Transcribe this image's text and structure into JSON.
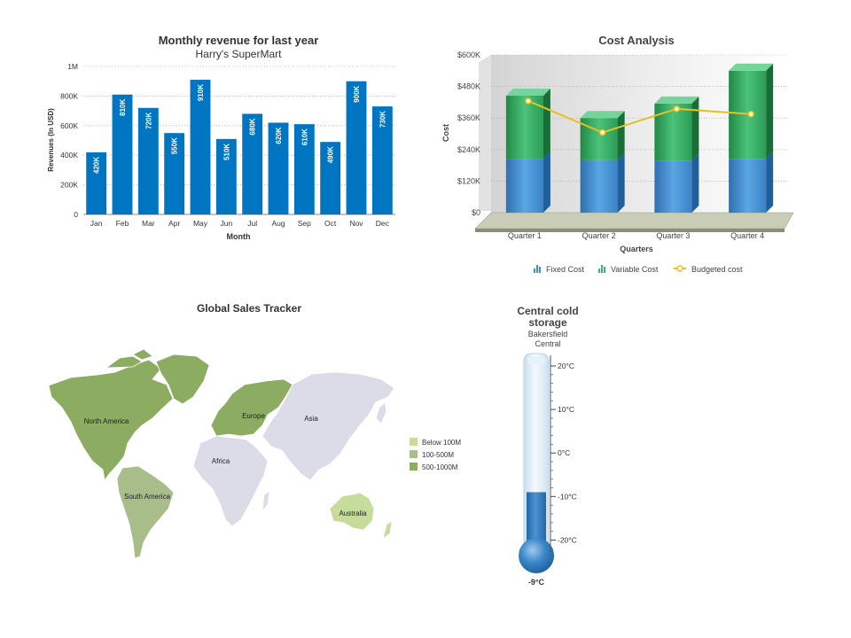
{
  "charts": {
    "revenue": {
      "title": "Monthly revenue for last year",
      "subtitle": "Harry's SuperMart",
      "xlabel": "Month",
      "ylabel": "Revenues (In USD)",
      "y_ticks": [
        "0",
        "200K",
        "400K",
        "600K",
        "800K",
        "1M"
      ],
      "bar_labels": [
        "420K",
        "810K",
        "720K",
        "550K",
        "910K",
        "510K",
        "680K",
        "620K",
        "610K",
        "490K",
        "900K",
        "730K"
      ],
      "colors": {
        "bar": "#0075c2",
        "grid": "#cccccc"
      }
    },
    "cost": {
      "title": "Cost Analysis",
      "xlabel": "Quarters",
      "ylabel": "Cost",
      "y_ticks": [
        "$0",
        "$120K",
        "$240K",
        "$360K",
        "$480K",
        "$600K"
      ],
      "legend": [
        "Fixed Cost",
        "Variable Cost",
        "Budgeted cost"
      ],
      "colors": {
        "fixed": "#3d8fd1",
        "variable": "#3cb371",
        "budget": "#e8c020"
      }
    },
    "map": {
      "title": "Global Sales Tracker",
      "regions": [
        "North America",
        "Europe",
        "Asia",
        "Africa",
        "South America",
        "Australia"
      ],
      "legend": [
        "Below 100M",
        "100-500M",
        "500-1000M"
      ],
      "colors": {
        "low": "#c6dc9a",
        "mid": "#a9bd8a",
        "high": "#8bac61",
        "none": "#dcdbe8"
      }
    },
    "thermo": {
      "title_line1": "Central cold",
      "title_line2": "storage",
      "subtitle_line1": "Bakersfield",
      "subtitle_line2": "Central",
      "scale": [
        "20°C",
        "10°C",
        "0°C",
        "-10°C",
        "-20°C"
      ],
      "value_label": "-9°C",
      "colors": {
        "fluid": "#2e7cc0",
        "tube": "#e3eef7"
      }
    }
  },
  "chart_data": [
    {
      "type": "bar",
      "title": "Monthly revenue for last year",
      "subtitle": "Harry's SuperMart",
      "xlabel": "Month",
      "ylabel": "Revenues (In USD)",
      "categories": [
        "Jan",
        "Feb",
        "Mar",
        "Apr",
        "May",
        "Jun",
        "Jul",
        "Aug",
        "Sep",
        "Oct",
        "Nov",
        "Dec"
      ],
      "values": [
        420000,
        810000,
        720000,
        550000,
        910000,
        510000,
        680000,
        620000,
        610000,
        490000,
        900000,
        730000
      ],
      "ylim": [
        0,
        1000000
      ],
      "grid": true
    },
    {
      "type": "bar",
      "stacked": true,
      "title": "Cost Analysis",
      "xlabel": "Quarters",
      "ylabel": "Cost",
      "categories": [
        "Quarter 1",
        "Quarter 2",
        "Quarter 3",
        "Quarter 4"
      ],
      "series": [
        {
          "name": "Fixed Cost",
          "values": [
            205000,
            200000,
            198000,
            205000
          ]
        },
        {
          "name": "Variable Cost",
          "values": [
            240000,
            160000,
            217000,
            335000
          ]
        },
        {
          "name": "Budgeted cost",
          "type": "line",
          "values": [
            425000,
            305000,
            395000,
            375000
          ]
        }
      ],
      "ylim": [
        0,
        600000
      ],
      "legend": "bottom",
      "grid": true
    },
    {
      "type": "gauge",
      "title": "Central cold storage",
      "subtitle": "Bakersfield Central",
      "range": [
        -25,
        20
      ],
      "value": -9,
      "unit": "°C"
    }
  ]
}
